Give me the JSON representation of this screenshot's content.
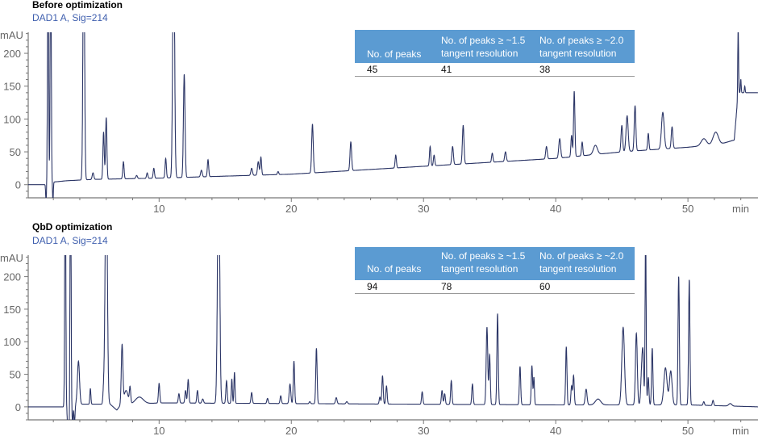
{
  "chart_data": [
    {
      "type": "line",
      "title": "Before optimization",
      "signal": "DAD1 A, Sig=214",
      "ylabel": "mAU",
      "xlabel": "min",
      "xlim": [
        0.1,
        55.3
      ],
      "ylim": [
        -20,
        232
      ],
      "xticks": [
        10,
        20,
        30,
        40,
        50
      ],
      "xtick_labels": [
        "10",
        "20",
        "30",
        "40",
        "50"
      ],
      "yticks": [
        0,
        50,
        100,
        150,
        200
      ],
      "ytick_labels": [
        "0",
        "50",
        "100",
        "150",
        "200"
      ],
      "line_color": "#2b3566",
      "baseline": [
        [
          0.1,
          0
        ],
        [
          1.4,
          0
        ],
        [
          2.0,
          4
        ],
        [
          3,
          6
        ],
        [
          5,
          8
        ],
        [
          10,
          10
        ],
        [
          15,
          13
        ],
        [
          20,
          16
        ],
        [
          25,
          22
        ],
        [
          30,
          28
        ],
        [
          35,
          34
        ],
        [
          40,
          40
        ],
        [
          45,
          50
        ],
        [
          50,
          57
        ],
        [
          52.5,
          62
        ],
        [
          53.5,
          68
        ],
        [
          53.8,
          140
        ],
        [
          55.3,
          140
        ]
      ],
      "peaks": [
        [
          1.45,
          -25,
          0.03
        ],
        [
          1.6,
          400,
          0.04
        ],
        [
          1.8,
          400,
          0.04
        ],
        [
          1.97,
          -25,
          0.03
        ],
        [
          4.3,
          400,
          0.06
        ],
        [
          5.0,
          18,
          0.06
        ],
        [
          5.8,
          80,
          0.05
        ],
        [
          6.0,
          102,
          0.05
        ],
        [
          7.3,
          35,
          0.05
        ],
        [
          8.3,
          14,
          0.06
        ],
        [
          9.1,
          18,
          0.05
        ],
        [
          9.6,
          25,
          0.05
        ],
        [
          10.5,
          40,
          0.05
        ],
        [
          11.1,
          400,
          0.07
        ],
        [
          11.9,
          168,
          0.06
        ],
        [
          13.2,
          22,
          0.06
        ],
        [
          13.7,
          38,
          0.05
        ],
        [
          17.0,
          25,
          0.06
        ],
        [
          17.5,
          35,
          0.06
        ],
        [
          17.7,
          42,
          0.05
        ],
        [
          19.0,
          20,
          0.05
        ],
        [
          21.6,
          92,
          0.06
        ],
        [
          24.5,
          65,
          0.06
        ],
        [
          27.9,
          45,
          0.05
        ],
        [
          30.5,
          58,
          0.05
        ],
        [
          30.8,
          45,
          0.05
        ],
        [
          32.2,
          58,
          0.06
        ],
        [
          33.0,
          90,
          0.06
        ],
        [
          35.2,
          48,
          0.05
        ],
        [
          36.2,
          50,
          0.06
        ],
        [
          39.3,
          58,
          0.06
        ],
        [
          40.3,
          70,
          0.07
        ],
        [
          41.2,
          75,
          0.05
        ],
        [
          41.4,
          142,
          0.05
        ],
        [
          42.0,
          65,
          0.05
        ],
        [
          43.0,
          60,
          0.15
        ],
        [
          45.0,
          90,
          0.06
        ],
        [
          45.4,
          105,
          0.08
        ],
        [
          46.0,
          120,
          0.06
        ],
        [
          47.0,
          78,
          0.05
        ],
        [
          48.1,
          110,
          0.1
        ],
        [
          48.8,
          88,
          0.06
        ],
        [
          51.2,
          70,
          0.2
        ],
        [
          52.1,
          80,
          0.2
        ],
        [
          53.8,
          240,
          0.03
        ],
        [
          54.0,
          160,
          0.03
        ],
        [
          54.3,
          150,
          0.03
        ]
      ],
      "table": {
        "headers": [
          "No. of peaks",
          "No. of peaks ≥ ~1.5",
          "No. of peaks ≥ ~2.0"
        ],
        "subheaders": [
          "",
          "tangent resolution",
          "tangent resolution"
        ],
        "values": [
          "45",
          "41",
          "38"
        ]
      }
    },
    {
      "type": "line",
      "title": "QbD optimization",
      "signal": "DAD1 A, Sig=214",
      "ylabel": "mAU",
      "xlabel": "min",
      "xlim": [
        0.1,
        55.3
      ],
      "ylim": [
        -20,
        233
      ],
      "xticks": [
        10,
        20,
        30,
        40,
        50
      ],
      "xtick_labels": [
        "10",
        "20",
        "30",
        "40",
        "50"
      ],
      "yticks": [
        0,
        50,
        100,
        150,
        200
      ],
      "ytick_labels": [
        "0",
        "50",
        "100",
        "150",
        "200"
      ],
      "line_color": "#2b3566",
      "baseline": [
        [
          0.1,
          0
        ],
        [
          2.8,
          0
        ],
        [
          3.6,
          4
        ],
        [
          6.3,
          4
        ],
        [
          6.8,
          -5
        ],
        [
          7.1,
          3
        ],
        [
          10,
          6
        ],
        [
          20,
          5
        ],
        [
          30,
          4
        ],
        [
          40,
          3
        ],
        [
          50,
          3
        ],
        [
          55.3,
          0
        ]
      ],
      "peaks": [
        [
          2.9,
          400,
          0.04
        ],
        [
          3.15,
          -80,
          0.06
        ],
        [
          3.3,
          400,
          0.04
        ],
        [
          3.45,
          -25,
          0.04
        ],
        [
          3.6,
          -25,
          0.04
        ],
        [
          3.9,
          70,
          0.08
        ],
        [
          4.8,
          28,
          0.04
        ],
        [
          5.8,
          25,
          0.05
        ],
        [
          6.0,
          400,
          0.08
        ],
        [
          7.2,
          93,
          0.06
        ],
        [
          7.5,
          25,
          0.15
        ],
        [
          7.8,
          28,
          0.05
        ],
        [
          8.5,
          15,
          0.3
        ],
        [
          10.0,
          36,
          0.05
        ],
        [
          11.5,
          20,
          0.05
        ],
        [
          12.0,
          25,
          0.05
        ],
        [
          12.2,
          42,
          0.05
        ],
        [
          12.9,
          25,
          0.05
        ],
        [
          13.3,
          12,
          0.06
        ],
        [
          14.5,
          400,
          0.08
        ],
        [
          15.1,
          40,
          0.05
        ],
        [
          15.5,
          43,
          0.04
        ],
        [
          15.7,
          53,
          0.04
        ],
        [
          17.0,
          22,
          0.05
        ],
        [
          18.2,
          13,
          0.05
        ],
        [
          19.2,
          17,
          0.05
        ],
        [
          19.9,
          35,
          0.06
        ],
        [
          20.2,
          70,
          0.05
        ],
        [
          21.4,
          8,
          0.05
        ],
        [
          21.9,
          90,
          0.05
        ],
        [
          23.4,
          14,
          0.06
        ],
        [
          24.2,
          8,
          0.06
        ],
        [
          26.7,
          15,
          0.05
        ],
        [
          26.9,
          48,
          0.05
        ],
        [
          27.2,
          32,
          0.05
        ],
        [
          29.9,
          23,
          0.05
        ],
        [
          31.4,
          25,
          0.05
        ],
        [
          31.6,
          20,
          0.05
        ],
        [
          32.1,
          40,
          0.05
        ],
        [
          33.7,
          35,
          0.05
        ],
        [
          34.8,
          122,
          0.06
        ],
        [
          35.0,
          80,
          0.05
        ],
        [
          35.6,
          143,
          0.05
        ],
        [
          37.3,
          62,
          0.05
        ],
        [
          38.2,
          63,
          0.05
        ],
        [
          38.35,
          45,
          0.04
        ],
        [
          40.8,
          92,
          0.05
        ],
        [
          41.2,
          32,
          0.05
        ],
        [
          41.35,
          48,
          0.05
        ],
        [
          42.3,
          27,
          0.07
        ],
        [
          43.2,
          12,
          0.2
        ],
        [
          45.1,
          122,
          0.1
        ],
        [
          46.1,
          113,
          0.07
        ],
        [
          46.5,
          50,
          0.07
        ],
        [
          46.6,
          70,
          0.06
        ],
        [
          46.8,
          268,
          0.04
        ],
        [
          47.0,
          45,
          0.05
        ],
        [
          47.3,
          90,
          0.05
        ],
        [
          48.3,
          60,
          0.12
        ],
        [
          48.7,
          55,
          0.1
        ],
        [
          49.3,
          200,
          0.05
        ],
        [
          50.1,
          195,
          0.05
        ],
        [
          51.2,
          8,
          0.05
        ],
        [
          51.9,
          10,
          0.05
        ],
        [
          53.2,
          5,
          0.12
        ]
      ],
      "table": {
        "headers": [
          "No. of peaks",
          "No. of peaks ≥ ~1.5",
          "No. of peaks ≥ ~2.0"
        ],
        "subheaders": [
          "",
          "tangent resolution",
          "tangent resolution"
        ],
        "values": [
          "94",
          "78",
          "60"
        ]
      }
    }
  ]
}
